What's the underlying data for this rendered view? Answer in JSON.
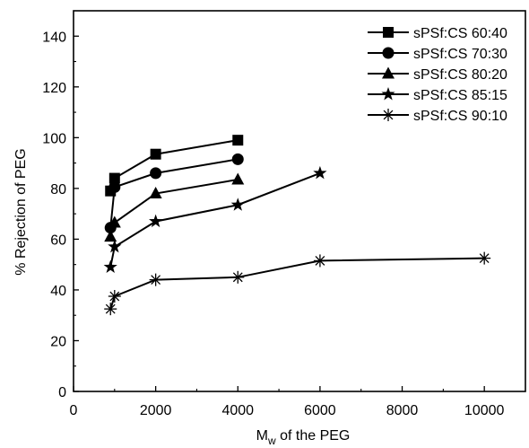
{
  "chart_data": {
    "type": "line",
    "title": "",
    "xlabel": {
      "main": "M",
      "sub": "w",
      "rest": " of the PEG"
    },
    "ylabel": "% Rejection of PEG",
    "xlim": [
      0,
      11000
    ],
    "ylim": [
      0,
      150
    ],
    "xticks": [
      0,
      2000,
      4000,
      6000,
      8000,
      10000
    ],
    "yticks": [
      0,
      20,
      40,
      60,
      80,
      100,
      120,
      140
    ],
    "grid": false,
    "legend_position": "top-right",
    "series": [
      {
        "name": "sPSf:CS 60:40",
        "marker": "square",
        "x": [
          900,
          1000,
          2000,
          4000
        ],
        "y": [
          79,
          84,
          93.5,
          99
        ]
      },
      {
        "name": "sPSf:CS 70:30",
        "marker": "circle",
        "x": [
          900,
          1000,
          2000,
          4000
        ],
        "y": [
          64.5,
          80.5,
          86,
          91.5
        ]
      },
      {
        "name": "sPSf:CS 80:20",
        "marker": "triangle",
        "x": [
          900,
          1000,
          2000,
          4000
        ],
        "y": [
          61,
          66.5,
          78,
          83.5
        ]
      },
      {
        "name": "sPSf:CS 85:15",
        "marker": "star",
        "x": [
          900,
          1000,
          2000,
          4000,
          6000
        ],
        "y": [
          49,
          57,
          67,
          73.5,
          86
        ]
      },
      {
        "name": "sPSf:CS 90:10",
        "marker": "asterisk",
        "x": [
          900,
          1000,
          2000,
          4000,
          6000,
          10000
        ],
        "y": [
          32.5,
          37.5,
          44,
          45,
          51.5,
          52.5
        ]
      }
    ]
  }
}
